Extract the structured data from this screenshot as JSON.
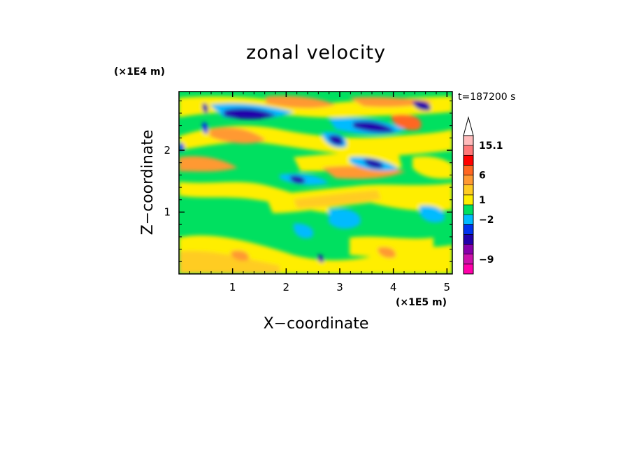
{
  "chart_data": {
    "type": "heatmap",
    "title": "zonal velocity",
    "xlabel": "X−coordinate",
    "ylabel": "Z−coordinate",
    "x_unit": "(×1E5 m)",
    "y_unit": "(×1E4 m)",
    "time_label": "t=187200 s",
    "xlim": [
      0,
      5.1
    ],
    "ylim": [
      0,
      2.95
    ],
    "x_ticks": [
      {
        "value": 1,
        "label": "1"
      },
      {
        "value": 2,
        "label": "2"
      },
      {
        "value": 3,
        "label": "3"
      },
      {
        "value": 4,
        "label": "4"
      },
      {
        "value": 5,
        "label": "5"
      }
    ],
    "y_ticks": [
      {
        "value": 1,
        "label": "1"
      },
      {
        "value": 2,
        "label": "2"
      }
    ],
    "colorbar": {
      "colors": [
        "#ff00aa",
        "#cc11aa",
        "#8800aa",
        "#2200aa",
        "#0033ee",
        "#00bbff",
        "#00e060",
        "#ffee00",
        "#ffcc22",
        "#ff9933",
        "#ff6622",
        "#ff0000",
        "#ff7777",
        "#ffbbbb"
      ],
      "labels": [
        {
          "level": 1.5,
          "label": "−9"
        },
        {
          "level": 5.5,
          "label": "−2"
        },
        {
          "level": 7.5,
          "label": "1"
        },
        {
          "level": 10,
          "label": "6"
        },
        {
          "level": 13,
          "label": "15.1"
        }
      ],
      "extend": "max"
    }
  }
}
